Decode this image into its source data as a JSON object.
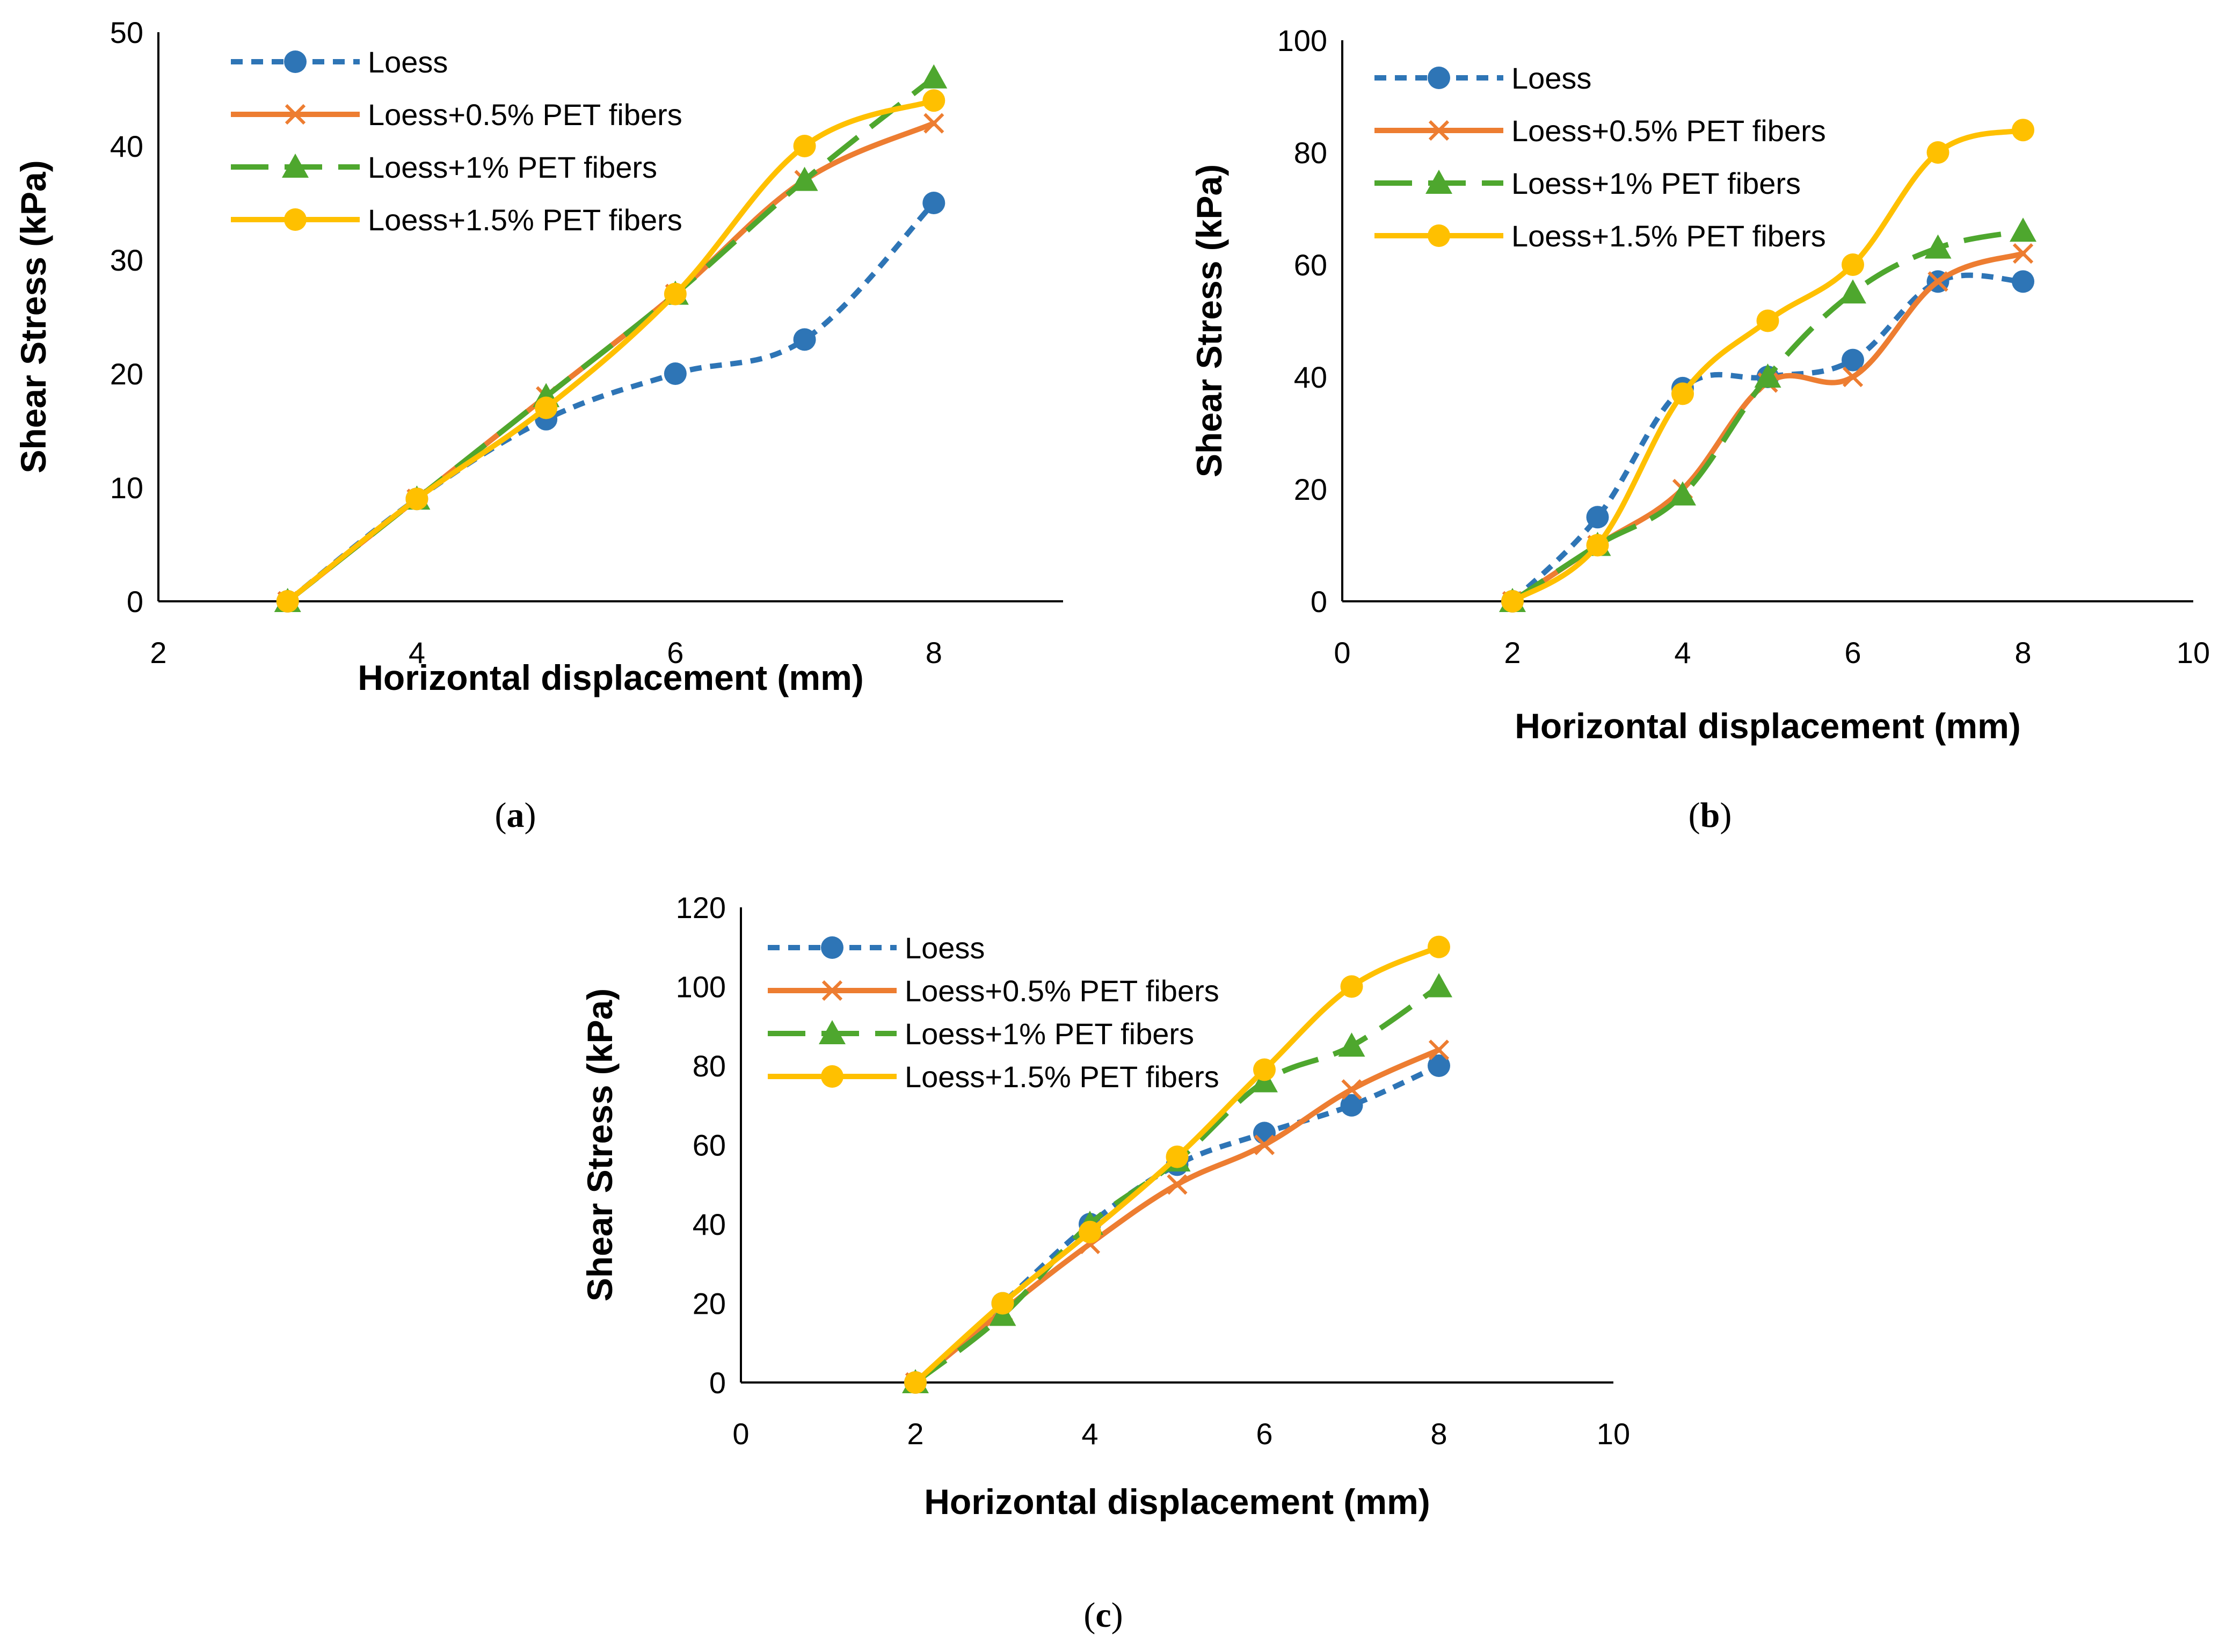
{
  "series_styles": [
    {
      "name": "Loess",
      "color": "#2E75B6",
      "dash": "short",
      "marker": "circle"
    },
    {
      "name": "Loess+0.5% PET fibers",
      "color": "#ED7D31",
      "dash": "solid",
      "marker": "x"
    },
    {
      "name": "Loess+1% PET fibers",
      "color": "#4EA72E",
      "dash": "long",
      "marker": "triangle"
    },
    {
      "name": "Loess+1.5% PET fibers",
      "color": "#FFC000",
      "dash": "solid",
      "marker": "circle"
    }
  ],
  "chart_data": [
    {
      "id": "a",
      "type": "line",
      "caption": {
        "open": "(",
        "letter": "a",
        "close": ")"
      },
      "xlabel": "Horizontal displacement (mm)",
      "ylabel": "Shear Stress (kPa)",
      "xlim": [
        2,
        9
      ],
      "ylim": [
        0,
        50
      ],
      "xticks": [
        2,
        4,
        6,
        8
      ],
      "yticks": [
        0,
        10,
        20,
        30,
        40,
        50
      ],
      "legend_position": "top-left",
      "x": [
        3,
        4,
        5,
        6,
        7,
        8
      ],
      "series": [
        {
          "name": "Loess",
          "values": [
            0,
            9,
            16,
            20,
            23,
            35
          ]
        },
        {
          "name": "Loess+0.5% PET fibers",
          "values": [
            0,
            9,
            18,
            27,
            37,
            42
          ]
        },
        {
          "name": "Loess+1% PET fibers",
          "values": [
            0,
            9,
            18,
            27,
            37,
            46
          ]
        },
        {
          "name": "Loess+1.5% PET fibers",
          "values": [
            0,
            9,
            17,
            27,
            40,
            44
          ]
        }
      ]
    },
    {
      "id": "b",
      "type": "line",
      "caption": {
        "open": "(",
        "letter": "b",
        "close": ")"
      },
      "xlabel": "Horizontal displacement (mm)",
      "ylabel": "Shear Stress (kPa)",
      "xlim": [
        0,
        10
      ],
      "ylim": [
        0,
        100
      ],
      "xticks": [
        0,
        2,
        4,
        6,
        8,
        10
      ],
      "yticks": [
        0,
        20,
        40,
        60,
        80,
        100
      ],
      "legend_position": "top-left",
      "x": [
        2,
        3,
        4,
        5,
        6,
        7,
        8
      ],
      "series": [
        {
          "name": "Loess",
          "values": [
            0,
            15,
            38,
            40,
            43,
            57,
            57
          ]
        },
        {
          "name": "Loess+0.5% PET fibers",
          "values": [
            0,
            10,
            20,
            39,
            40,
            57,
            62
          ]
        },
        {
          "name": "Loess+1% PET fibers",
          "values": [
            0,
            10,
            19,
            40,
            55,
            63,
            66
          ]
        },
        {
          "name": "Loess+1.5% PET fibers",
          "values": [
            0,
            10,
            37,
            50,
            60,
            80,
            84
          ]
        }
      ]
    },
    {
      "id": "c",
      "type": "line",
      "caption": {
        "open": "(",
        "letter": "c",
        "close": ")"
      },
      "xlabel": "Horizontal displacement (mm)",
      "ylabel": "Shear Stress (kPa)",
      "xlim": [
        0,
        10
      ],
      "ylim": [
        0,
        120
      ],
      "xticks": [
        0,
        2,
        4,
        6,
        8,
        10
      ],
      "yticks": [
        0,
        20,
        40,
        60,
        80,
        100,
        120
      ],
      "legend_position": "top-left",
      "x": [
        2,
        3,
        4,
        5,
        6,
        7,
        8
      ],
      "series": [
        {
          "name": "Loess",
          "values": [
            0,
            20,
            40,
            55,
            63,
            70,
            80
          ]
        },
        {
          "name": "Loess+0.5% PET fibers",
          "values": [
            0,
            18,
            35,
            50,
            60,
            74,
            84
          ]
        },
        {
          "name": "Loess+1% PET fibers",
          "values": [
            0,
            17,
            40,
            56,
            76,
            85,
            100
          ]
        },
        {
          "name": "Loess+1.5% PET fibers",
          "values": [
            0,
            20,
            38,
            57,
            79,
            100,
            110
          ]
        }
      ]
    }
  ]
}
